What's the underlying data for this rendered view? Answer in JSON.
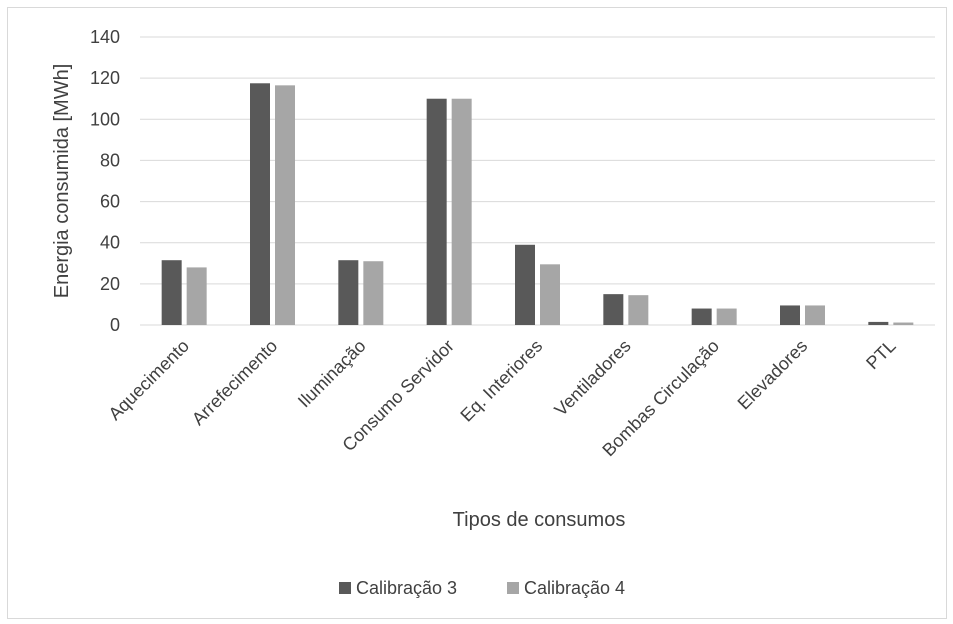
{
  "chart_data": {
    "type": "bar",
    "title": "",
    "xlabel": "Tipos de consumos",
    "ylabel": "Energia consumida [MWh]",
    "ylim": [
      0,
      140
    ],
    "yticks": [
      "0",
      "20",
      "40",
      "60",
      "80",
      "100",
      "120",
      "140"
    ],
    "grid": "horizontal",
    "legend_position": "bottom",
    "categories": [
      "Aquecimento",
      "Arrefecimento",
      "Iluminação",
      "Consumo Servidor",
      "Eq. Interiores",
      "Ventiladores",
      "Bombas Circulação",
      "Elevadores",
      "PTL"
    ],
    "series": [
      {
        "name": "Calibração 3",
        "color": "#595959",
        "values": [
          31.5,
          117.5,
          31.5,
          110,
          39,
          15,
          8,
          9.5,
          1.5
        ]
      },
      {
        "name": "Calibração 4",
        "color": "#a6a6a6",
        "values": [
          28,
          116.5,
          31,
          110,
          29.5,
          14.5,
          8,
          9.5,
          1.2
        ]
      }
    ]
  }
}
